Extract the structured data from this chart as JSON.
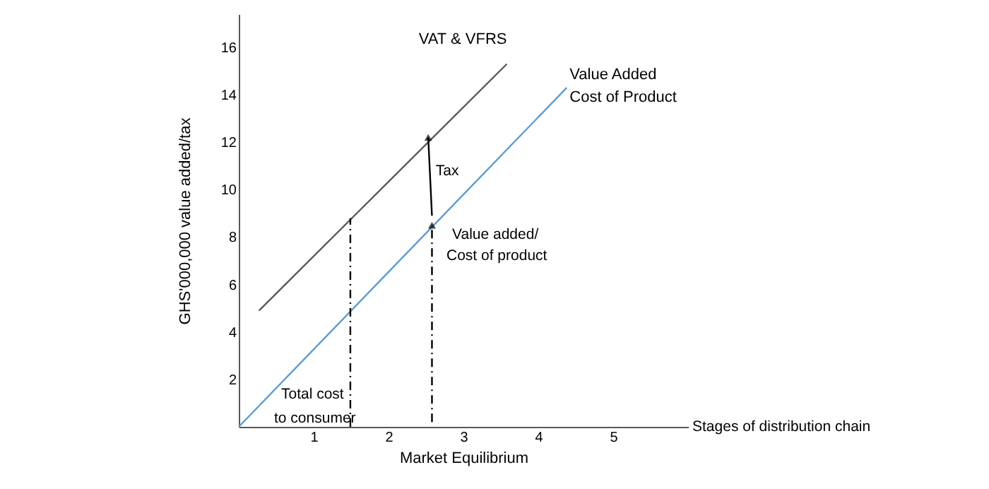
{
  "chart_data": {
    "type": "line",
    "xlabel": "Market Equilibrium",
    "ylabel": "GHS'000,000 value added/tax",
    "xlim": [
      0,
      6
    ],
    "ylim": [
      0,
      17.4
    ],
    "xticks": [
      1,
      2,
      3,
      4,
      5
    ],
    "yticks": [
      2,
      4,
      6,
      8,
      10,
      12,
      14,
      16
    ],
    "grid": false,
    "series": [
      {
        "name": "VAT & VFRS",
        "color": "#595959",
        "x": [
          0.27,
          3.58
        ],
        "values": [
          4.9,
          15.3
        ]
      },
      {
        "name": "Value Added Cost of Product",
        "color": "#5b9bd5",
        "x": [
          0,
          4.38
        ],
        "values": [
          0,
          14.3
        ]
      },
      {
        "color": "#000000",
        "line_style": "dashed",
        "x": [
          1.49,
          1.49
        ],
        "values": [
          0,
          8.8
        ]
      },
      {
        "color": "#000000",
        "line_style": "dashed",
        "marker": "triangle",
        "x": [
          2.58,
          2.58
        ],
        "values": [
          0.2,
          8.5
        ]
      },
      {
        "color": "#000000",
        "line_style": "solid",
        "marker": "triangle",
        "x": [
          2.58,
          2.53
        ],
        "values": [
          8.9,
          12.2
        ]
      }
    ],
    "annotations": [
      {
        "text": "Tax",
        "x": 2.63,
        "y": 10.8
      },
      "Value added/",
      "Cost of product",
      "Total cost",
      "to consumer",
      "Stages of distribution chain"
    ]
  }
}
